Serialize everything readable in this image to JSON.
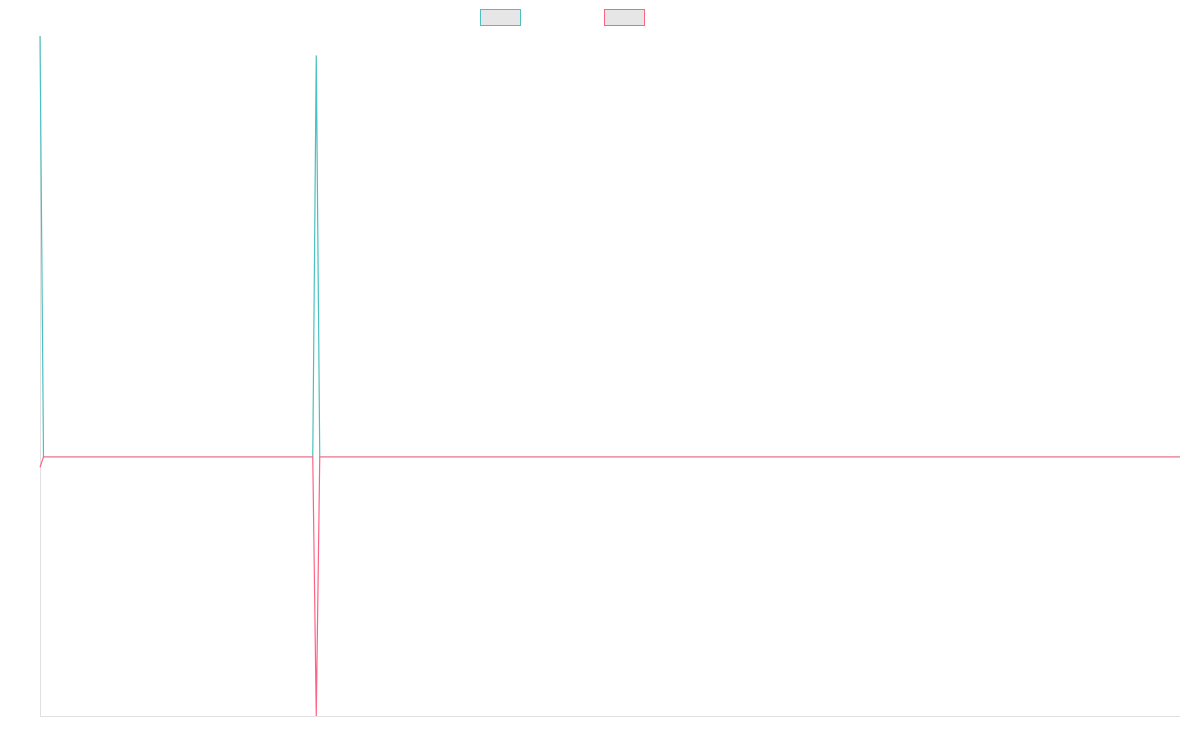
{
  "chart_data": {
    "type": "line",
    "x": [
      0,
      1,
      78,
      79,
      80,
      326
    ],
    "xlim": [
      0,
      326
    ],
    "ylim": [
      -1,
      1.625
    ],
    "series": [
      {
        "color": "#4bc0c0",
        "values": [
          1.625,
          0,
          0,
          1.55,
          0,
          0
        ]
      },
      {
        "color": "#ff6384",
        "values": [
          -0.04,
          0,
          0,
          -1,
          0,
          0
        ]
      }
    ]
  }
}
